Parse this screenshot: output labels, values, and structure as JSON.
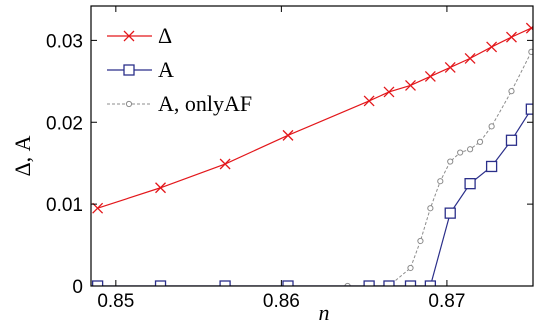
{
  "chart_data": {
    "type": "line",
    "xlabel": "n",
    "ylabel": "Δ, A",
    "xlim": [
      0.8485,
      0.8752
    ],
    "ylim": [
      0,
      0.0342
    ],
    "xticks": [
      0.85,
      0.86,
      0.87
    ],
    "xtick_labels": [
      "0.85",
      "0.86",
      "0.87"
    ],
    "yticks": [
      0,
      0.01,
      0.02,
      0.03
    ],
    "ytick_labels": [
      "0",
      "0.01",
      "0.02",
      "0.03"
    ],
    "legend_position": "top-left",
    "grid": false,
    "series": [
      {
        "name": "Δ",
        "color": "#e3171b",
        "marker": "x",
        "dashed": false,
        "x": [
          0.8489,
          0.8527,
          0.8566,
          0.8604,
          0.8653,
          0.8665,
          0.8678,
          0.869,
          0.8702,
          0.8714,
          0.8727,
          0.8739,
          0.8751
        ],
        "y": [
          0.0095,
          0.012,
          0.0149,
          0.0184,
          0.0226,
          0.0237,
          0.0245,
          0.0256,
          0.0267,
          0.0278,
          0.0292,
          0.0304,
          0.0315
        ]
      },
      {
        "name": "A",
        "color": "#2b2f8a",
        "marker": "square",
        "dashed": false,
        "x": [
          0.8489,
          0.8527,
          0.8566,
          0.8604,
          0.8653,
          0.8665,
          0.8678,
          0.869,
          0.8702,
          0.8714,
          0.8727,
          0.8739,
          0.8751
        ],
        "y": [
          0,
          0,
          0,
          0,
          0,
          0,
          0,
          0,
          0.0089,
          0.0125,
          0.0146,
          0.0178,
          0.0216
        ]
      },
      {
        "name": "A, onlyAF",
        "color": "#8c8c8c",
        "marker": "circle",
        "dashed": true,
        "x": [
          0.864,
          0.8653,
          0.8665,
          0.8678,
          0.8684,
          0.869,
          0.8696,
          0.8702,
          0.8708,
          0.8714,
          0.872,
          0.8727,
          0.8739,
          0.8751
        ],
        "y": [
          0,
          0,
          0,
          0.0022,
          0.0055,
          0.0095,
          0.0128,
          0.0152,
          0.0163,
          0.0167,
          0.0176,
          0.0195,
          0.0238,
          0.0286
        ]
      }
    ]
  }
}
